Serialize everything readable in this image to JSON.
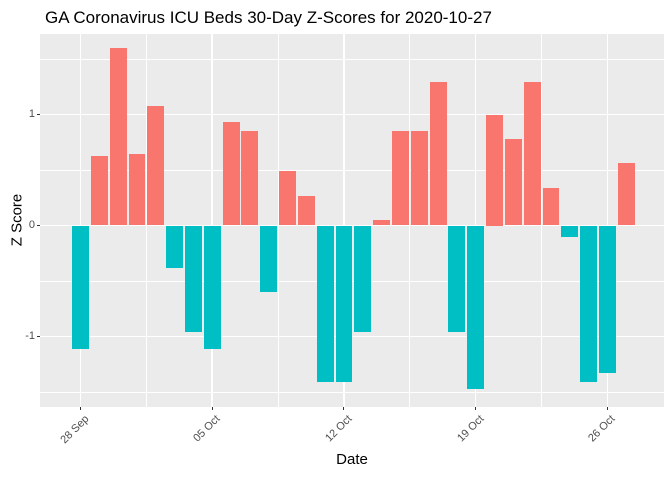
{
  "chart_data": {
    "type": "bar",
    "title": "GA Coronavirus ICU Beds 30-Day Z-Scores for 2020-10-27",
    "xlabel": "Date",
    "ylabel": "Z Score",
    "dates": [
      "28 Sep",
      "29 Sep",
      "30 Sep",
      "01 Oct",
      "02 Oct",
      "03 Oct",
      "04 Oct",
      "05 Oct",
      "06 Oct",
      "07 Oct",
      "08 Oct",
      "09 Oct",
      "10 Oct",
      "11 Oct",
      "12 Oct",
      "13 Oct",
      "14 Oct",
      "15 Oct",
      "16 Oct",
      "17 Oct",
      "18 Oct",
      "19 Oct",
      "20 Oct",
      "21 Oct",
      "22 Oct",
      "23 Oct",
      "24 Oct",
      "25 Oct",
      "26 Oct",
      "27 Oct"
    ],
    "values": [
      -1.11,
      0.63,
      1.6,
      0.64,
      1.08,
      -0.38,
      -0.96,
      -1.11,
      0.93,
      0.85,
      -0.6,
      0.49,
      0.27,
      -1.41,
      -1.41,
      -0.96,
      0.05,
      0.85,
      0.85,
      1.29,
      -0.96,
      -1.47,
      1.0,
      0.78,
      1.29,
      0.34,
      -0.1,
      -1.41,
      -1.33,
      0.56
    ],
    "x_tick_indices": [
      0,
      7,
      14,
      21,
      28
    ],
    "x_tick_labels": [
      "28 Sep",
      "05 Oct",
      "12 Oct",
      "19 Oct",
      "26 Oct"
    ],
    "x_minor_indices": [
      3.5,
      10.5,
      17.5,
      24.5
    ],
    "y_ticks": [
      -1,
      0,
      1
    ],
    "y_tick_labels": [
      "-1",
      "0",
      "1"
    ],
    "y_minor": [
      -1.5,
      -0.5,
      0.5,
      1.5
    ],
    "ylim": [
      -1.64,
      1.73
    ],
    "grid": true,
    "legend": "none",
    "colors": {
      "positive": "#F8766D",
      "negative": "#00BFC4",
      "panel_bg": "#EBEBEB",
      "gridline": "#FFFFFF",
      "axis_text": "#4D4D4D",
      "tick_mark": "#333333",
      "title_text": "#000000"
    }
  }
}
